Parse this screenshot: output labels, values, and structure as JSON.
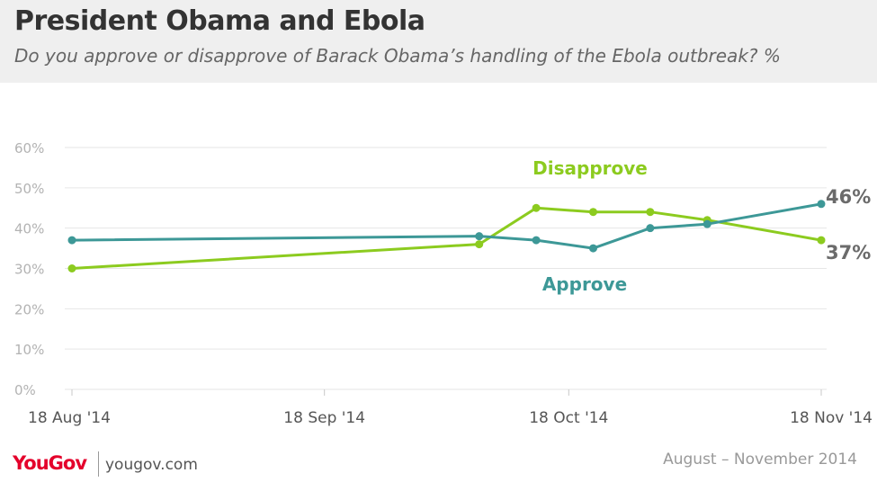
{
  "header": {
    "title": "President Obama and Ebola",
    "subtitle": "Do you approve or disapprove of Barack Obama’s handling of the Ebola outbreak? %"
  },
  "chart_data": {
    "type": "line",
    "title": "President Obama and Ebola",
    "subtitle": "Do you approve or disapprove of Barack Obama’s handling of the Ebola outbreak? %",
    "xlabel": "",
    "ylabel": "",
    "x_type": "date",
    "xlim": [
      "2014-08-18",
      "2014-11-18"
    ],
    "ylim": [
      0,
      60
    ],
    "yticks": [
      0,
      10,
      20,
      30,
      40,
      50,
      60
    ],
    "ytick_labels": [
      "0%",
      "10%",
      "20%",
      "30%",
      "40%",
      "50%",
      "60%"
    ],
    "xticks": [
      "2014-08-18",
      "2014-09-18",
      "2014-10-18",
      "2014-11-18"
    ],
    "xtick_labels": [
      "18 Aug '14",
      "18 Sep '14",
      "18 Oct '14",
      "18 Nov '14"
    ],
    "grid": true,
    "series": [
      {
        "name": "Approve",
        "color": "#3d9897",
        "x": [
          "2014-08-18",
          "2014-10-07",
          "2014-10-14",
          "2014-10-21",
          "2014-10-28",
          "2014-11-04",
          "2014-11-18"
        ],
        "values": [
          37,
          38,
          37,
          35,
          40,
          41,
          46
        ],
        "end_label": "46%"
      },
      {
        "name": "Disapprove",
        "color": "#8ccb1f",
        "x": [
          "2014-08-18",
          "2014-10-07",
          "2014-10-14",
          "2014-10-21",
          "2014-10-28",
          "2014-11-04",
          "2014-11-18"
        ],
        "values": [
          30,
          36,
          45,
          44,
          44,
          42,
          37
        ],
        "end_label": "37%"
      }
    ]
  },
  "footer": {
    "brand": "YouGov",
    "url": "yougov.com",
    "date_range": "August – November 2014"
  }
}
